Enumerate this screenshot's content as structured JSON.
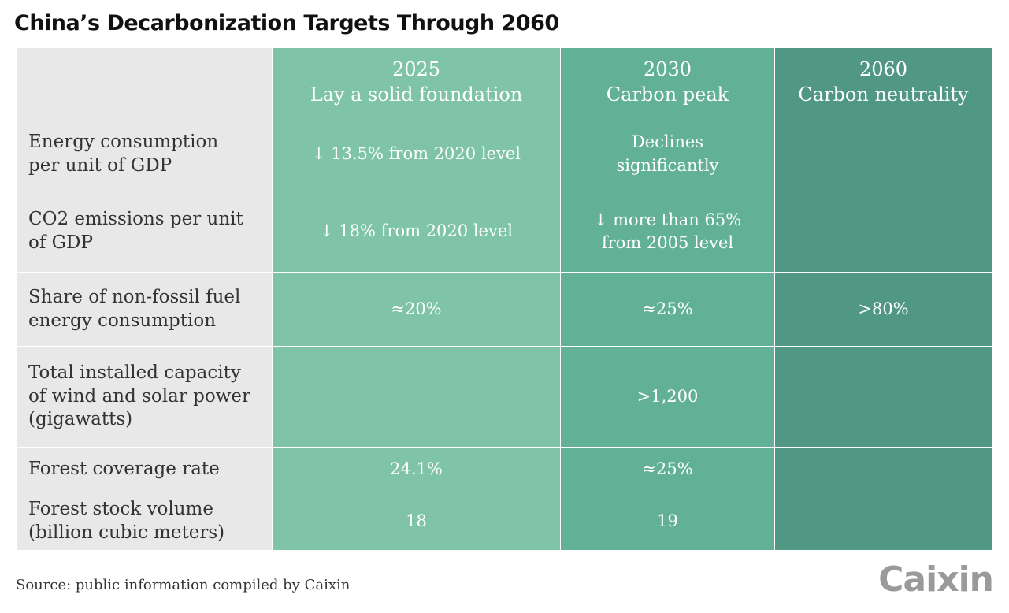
{
  "title": "China’s Decarbonization Targets Through 2060",
  "source": "Source: public information compiled by Caixin",
  "logo": "Caixin",
  "colors": {
    "label_bg": "#e8e8e8",
    "col_2025": "#7fc4a8",
    "col_2030": "#62b095",
    "col_2060": "#519884"
  },
  "chart_data": {
    "type": "table",
    "title": "China’s Decarbonization Targets Through 2060",
    "columns": [
      {
        "year": "2025",
        "label": "Lay a solid foundation"
      },
      {
        "year": "2030",
        "label": "Carbon peak"
      },
      {
        "year": "2060",
        "label": "Carbon neutrality"
      }
    ],
    "rows": [
      {
        "label": "Energy consumption\nper unit of GDP",
        "values": [
          "↓ 13.5% from 2020 level",
          "Declines\nsignificantly",
          ""
        ]
      },
      {
        "label": "CO2 emissions per unit\nof GDP",
        "values": [
          "↓ 18% from 2020 level",
          "↓ more than 65%\nfrom 2005 level",
          ""
        ]
      },
      {
        "label": "Share of non-fossil fuel\nenergy consumption",
        "values": [
          "≈20%",
          "≈25%",
          ">80%"
        ]
      },
      {
        "label": "Total installed capacity\nof wind and solar power\n(gigawatts)",
        "values": [
          "",
          ">1,200",
          ""
        ]
      },
      {
        "label": "Forest coverage rate",
        "values": [
          "24.1%",
          "≈25%",
          ""
        ]
      },
      {
        "label": "Forest stock volume\n(billion cubic meters)",
        "values": [
          "18",
          "19",
          ""
        ]
      }
    ]
  }
}
